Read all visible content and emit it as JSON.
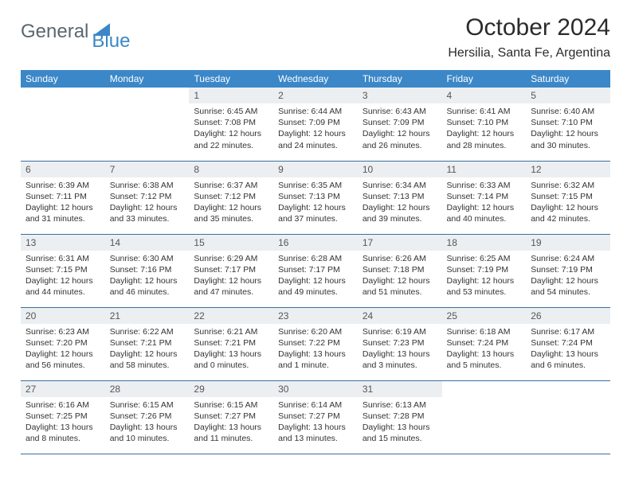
{
  "logo": {
    "part1": "General",
    "part2": "Blue"
  },
  "title": "October 2024",
  "location": "Hersilia, Santa Fe, Argentina",
  "colors": {
    "header_bg": "#3b87c8",
    "header_text": "#ffffff",
    "daynum_bg": "#eceff1",
    "border": "#3b6ea0",
    "logo_gray": "#5b6770",
    "logo_blue": "#3b87c8"
  },
  "weekdays": [
    "Sunday",
    "Monday",
    "Tuesday",
    "Wednesday",
    "Thursday",
    "Friday",
    "Saturday"
  ],
  "weeks": [
    [
      {
        "empty": true
      },
      {
        "empty": true
      },
      {
        "n": "1",
        "sr": "6:45 AM",
        "ss": "7:08 PM",
        "dl": "12 hours and 22 minutes."
      },
      {
        "n": "2",
        "sr": "6:44 AM",
        "ss": "7:09 PM",
        "dl": "12 hours and 24 minutes."
      },
      {
        "n": "3",
        "sr": "6:43 AM",
        "ss": "7:09 PM",
        "dl": "12 hours and 26 minutes."
      },
      {
        "n": "4",
        "sr": "6:41 AM",
        "ss": "7:10 PM",
        "dl": "12 hours and 28 minutes."
      },
      {
        "n": "5",
        "sr": "6:40 AM",
        "ss": "7:10 PM",
        "dl": "12 hours and 30 minutes."
      }
    ],
    [
      {
        "n": "6",
        "sr": "6:39 AM",
        "ss": "7:11 PM",
        "dl": "12 hours and 31 minutes."
      },
      {
        "n": "7",
        "sr": "6:38 AM",
        "ss": "7:12 PM",
        "dl": "12 hours and 33 minutes."
      },
      {
        "n": "8",
        "sr": "6:37 AM",
        "ss": "7:12 PM",
        "dl": "12 hours and 35 minutes."
      },
      {
        "n": "9",
        "sr": "6:35 AM",
        "ss": "7:13 PM",
        "dl": "12 hours and 37 minutes."
      },
      {
        "n": "10",
        "sr": "6:34 AM",
        "ss": "7:13 PM",
        "dl": "12 hours and 39 minutes."
      },
      {
        "n": "11",
        "sr": "6:33 AM",
        "ss": "7:14 PM",
        "dl": "12 hours and 40 minutes."
      },
      {
        "n": "12",
        "sr": "6:32 AM",
        "ss": "7:15 PM",
        "dl": "12 hours and 42 minutes."
      }
    ],
    [
      {
        "n": "13",
        "sr": "6:31 AM",
        "ss": "7:15 PM",
        "dl": "12 hours and 44 minutes."
      },
      {
        "n": "14",
        "sr": "6:30 AM",
        "ss": "7:16 PM",
        "dl": "12 hours and 46 minutes."
      },
      {
        "n": "15",
        "sr": "6:29 AM",
        "ss": "7:17 PM",
        "dl": "12 hours and 47 minutes."
      },
      {
        "n": "16",
        "sr": "6:28 AM",
        "ss": "7:17 PM",
        "dl": "12 hours and 49 minutes."
      },
      {
        "n": "17",
        "sr": "6:26 AM",
        "ss": "7:18 PM",
        "dl": "12 hours and 51 minutes."
      },
      {
        "n": "18",
        "sr": "6:25 AM",
        "ss": "7:19 PM",
        "dl": "12 hours and 53 minutes."
      },
      {
        "n": "19",
        "sr": "6:24 AM",
        "ss": "7:19 PM",
        "dl": "12 hours and 54 minutes."
      }
    ],
    [
      {
        "n": "20",
        "sr": "6:23 AM",
        "ss": "7:20 PM",
        "dl": "12 hours and 56 minutes."
      },
      {
        "n": "21",
        "sr": "6:22 AM",
        "ss": "7:21 PM",
        "dl": "12 hours and 58 minutes."
      },
      {
        "n": "22",
        "sr": "6:21 AM",
        "ss": "7:21 PM",
        "dl": "13 hours and 0 minutes."
      },
      {
        "n": "23",
        "sr": "6:20 AM",
        "ss": "7:22 PM",
        "dl": "13 hours and 1 minute."
      },
      {
        "n": "24",
        "sr": "6:19 AM",
        "ss": "7:23 PM",
        "dl": "13 hours and 3 minutes."
      },
      {
        "n": "25",
        "sr": "6:18 AM",
        "ss": "7:24 PM",
        "dl": "13 hours and 5 minutes."
      },
      {
        "n": "26",
        "sr": "6:17 AM",
        "ss": "7:24 PM",
        "dl": "13 hours and 6 minutes."
      }
    ],
    [
      {
        "n": "27",
        "sr": "6:16 AM",
        "ss": "7:25 PM",
        "dl": "13 hours and 8 minutes."
      },
      {
        "n": "28",
        "sr": "6:15 AM",
        "ss": "7:26 PM",
        "dl": "13 hours and 10 minutes."
      },
      {
        "n": "29",
        "sr": "6:15 AM",
        "ss": "7:27 PM",
        "dl": "13 hours and 11 minutes."
      },
      {
        "n": "30",
        "sr": "6:14 AM",
        "ss": "7:27 PM",
        "dl": "13 hours and 13 minutes."
      },
      {
        "n": "31",
        "sr": "6:13 AM",
        "ss": "7:28 PM",
        "dl": "13 hours and 15 minutes."
      },
      {
        "empty": true
      },
      {
        "empty": true
      }
    ]
  ],
  "labels": {
    "sunrise": "Sunrise:",
    "sunset": "Sunset:",
    "daylight": "Daylight:"
  }
}
